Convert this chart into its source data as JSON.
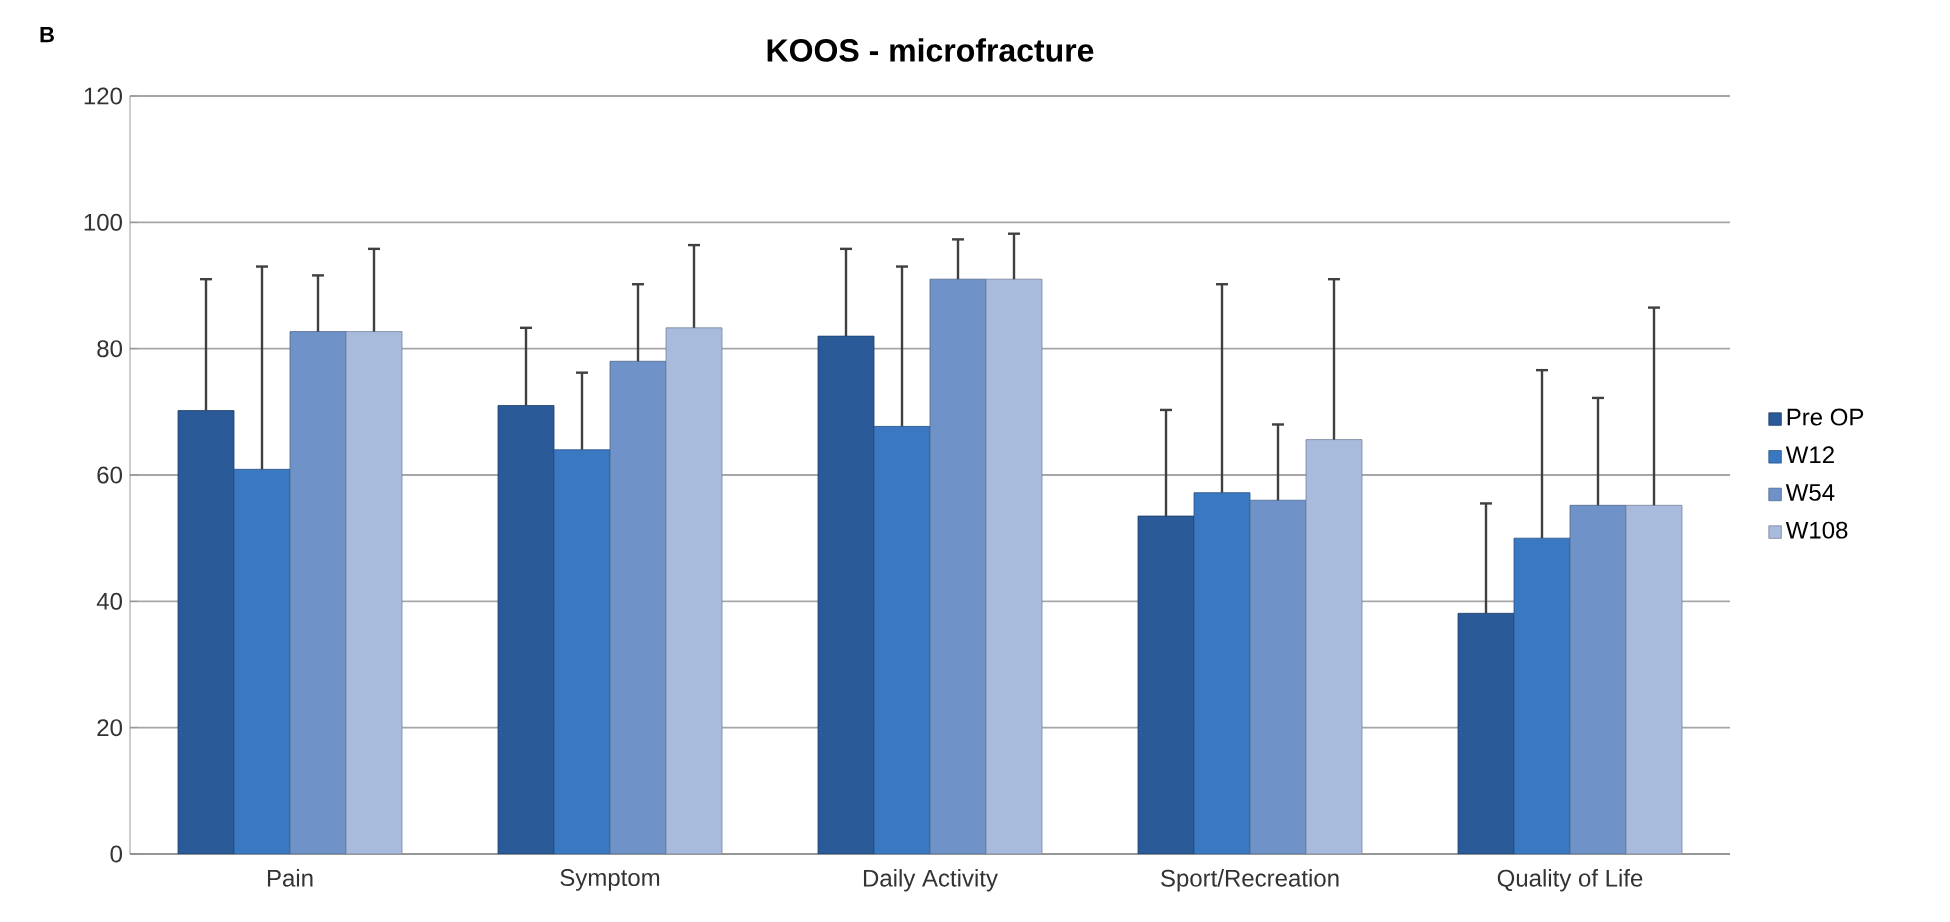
{
  "chart_data": {
    "type": "bar",
    "title": "KOOS - microfracture",
    "annotations": [
      "B"
    ],
    "categories": [
      "Pain",
      "Symptom",
      "Daily Activity",
      "Sport/Recreation",
      "Quality of Life"
    ],
    "series": [
      {
        "name": "Pre OP",
        "color": "#2a5a97",
        "values": [
          70.2,
          71,
          82,
          53.5,
          38.1
        ],
        "errors": [
          [
            70.2,
            91
          ],
          [
            71,
            83.3
          ],
          [
            82,
            95.8
          ],
          [
            53.5,
            70.3
          ],
          [
            38.1,
            55.5
          ]
        ]
      },
      {
        "name": "W12",
        "color": "#3a78c2",
        "values": [
          60.9,
          64,
          67.7,
          57.2,
          50
        ],
        "errors": [
          [
            60.9,
            93
          ],
          [
            64,
            76.2
          ],
          [
            67.7,
            93
          ],
          [
            57.2,
            90.2
          ],
          [
            50,
            76.6
          ]
        ]
      },
      {
        "name": "W54",
        "color": "#6f93c9",
        "values": [
          82.7,
          78,
          91,
          56,
          55.2
        ],
        "errors": [
          [
            82.7,
            91.6
          ],
          [
            78,
            90.2
          ],
          [
            91,
            97.3
          ],
          [
            56,
            68
          ],
          [
            55.2,
            72.2
          ]
        ]
      },
      {
        "name": "W108",
        "color": "#a9bbdc",
        "values": [
          82.7,
          83.3,
          91,
          65.6,
          55.2
        ],
        "errors": [
          [
            82.7,
            95.8
          ],
          [
            83.3,
            96.4
          ],
          [
            91,
            98.2
          ],
          [
            65.6,
            91
          ],
          [
            55.2,
            86.5
          ]
        ]
      }
    ],
    "ylim": [
      0,
      120
    ],
    "yticks": [
      0,
      20,
      40,
      60,
      80,
      100,
      120
    ],
    "grid": "y",
    "legend": "right"
  }
}
